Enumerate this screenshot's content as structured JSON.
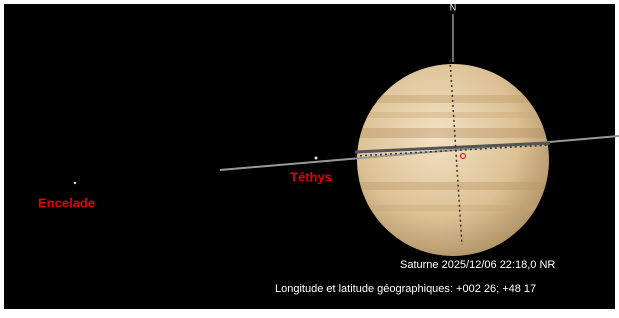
{
  "north": "N",
  "moons": [
    {
      "label": "Encelade"
    },
    {
      "label": "Téthys"
    }
  ],
  "status": {
    "object_time": "Saturne 2025/12/06 22:18,0 NR",
    "coordinates": "Longitude et latitude géographiques: +002 26; +48 17"
  }
}
